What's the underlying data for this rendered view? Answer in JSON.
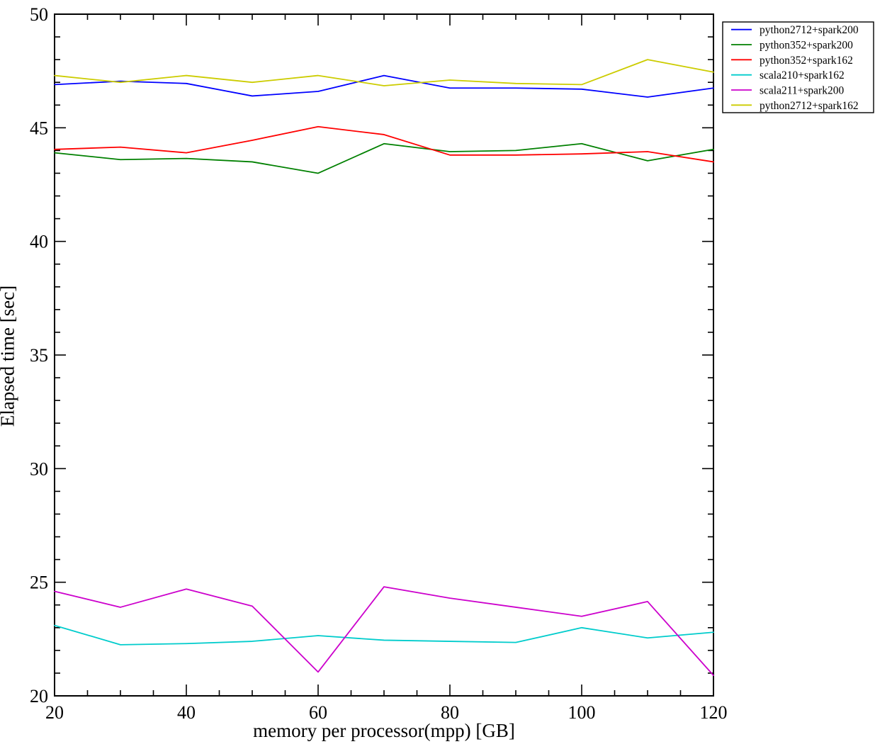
{
  "chart_data": {
    "type": "line",
    "title": "",
    "xlabel": "memory per processor(mpp) [GB]",
    "ylabel": "Elapsed time [sec]",
    "xlim": [
      20,
      120
    ],
    "ylim": [
      20,
      50
    ],
    "xticks_major": [
      20,
      40,
      60,
      80,
      100,
      120
    ],
    "xtick_minor_step": 5,
    "yticks_major": [
      20,
      25,
      30,
      35,
      40,
      45,
      50
    ],
    "ytick_minor_step": 1,
    "grid": false,
    "legend_position": "outside-top-right",
    "x": [
      20,
      30,
      40,
      50,
      60,
      70,
      80,
      90,
      100,
      110,
      120
    ],
    "series": [
      {
        "name": "python2712+spark200",
        "color": "#0000ff",
        "values": [
          46.9,
          47.05,
          46.95,
          46.4,
          46.6,
          47.3,
          46.75,
          46.75,
          46.7,
          46.35,
          46.75
        ]
      },
      {
        "name": "python352+spark200",
        "color": "#008000",
        "values": [
          43.9,
          43.6,
          43.65,
          43.5,
          43.0,
          44.3,
          43.95,
          44.0,
          44.3,
          43.55,
          44.05
        ]
      },
      {
        "name": "python352+spark162",
        "color": "#ff0000",
        "values": [
          44.05,
          44.15,
          43.9,
          44.45,
          45.05,
          44.7,
          43.8,
          43.8,
          43.85,
          43.95,
          43.5
        ]
      },
      {
        "name": "scala210+spark162",
        "color": "#00cccc",
        "values": [
          23.1,
          22.25,
          22.3,
          22.4,
          22.65,
          22.45,
          22.4,
          22.35,
          23.0,
          22.55,
          22.8
        ]
      },
      {
        "name": "scala211+spark200",
        "color": "#cc00cc",
        "values": [
          24.6,
          23.9,
          24.7,
          23.95,
          21.05,
          24.8,
          24.3,
          23.9,
          23.5,
          24.15,
          20.9
        ]
      },
      {
        "name": "python2712+spark162",
        "color": "#cccc00",
        "values": [
          47.3,
          47.0,
          47.3,
          47.0,
          47.3,
          46.85,
          47.1,
          46.95,
          46.9,
          48.0,
          47.45
        ]
      }
    ],
    "axis_color": "#000000",
    "background_color": "#ffffff"
  }
}
